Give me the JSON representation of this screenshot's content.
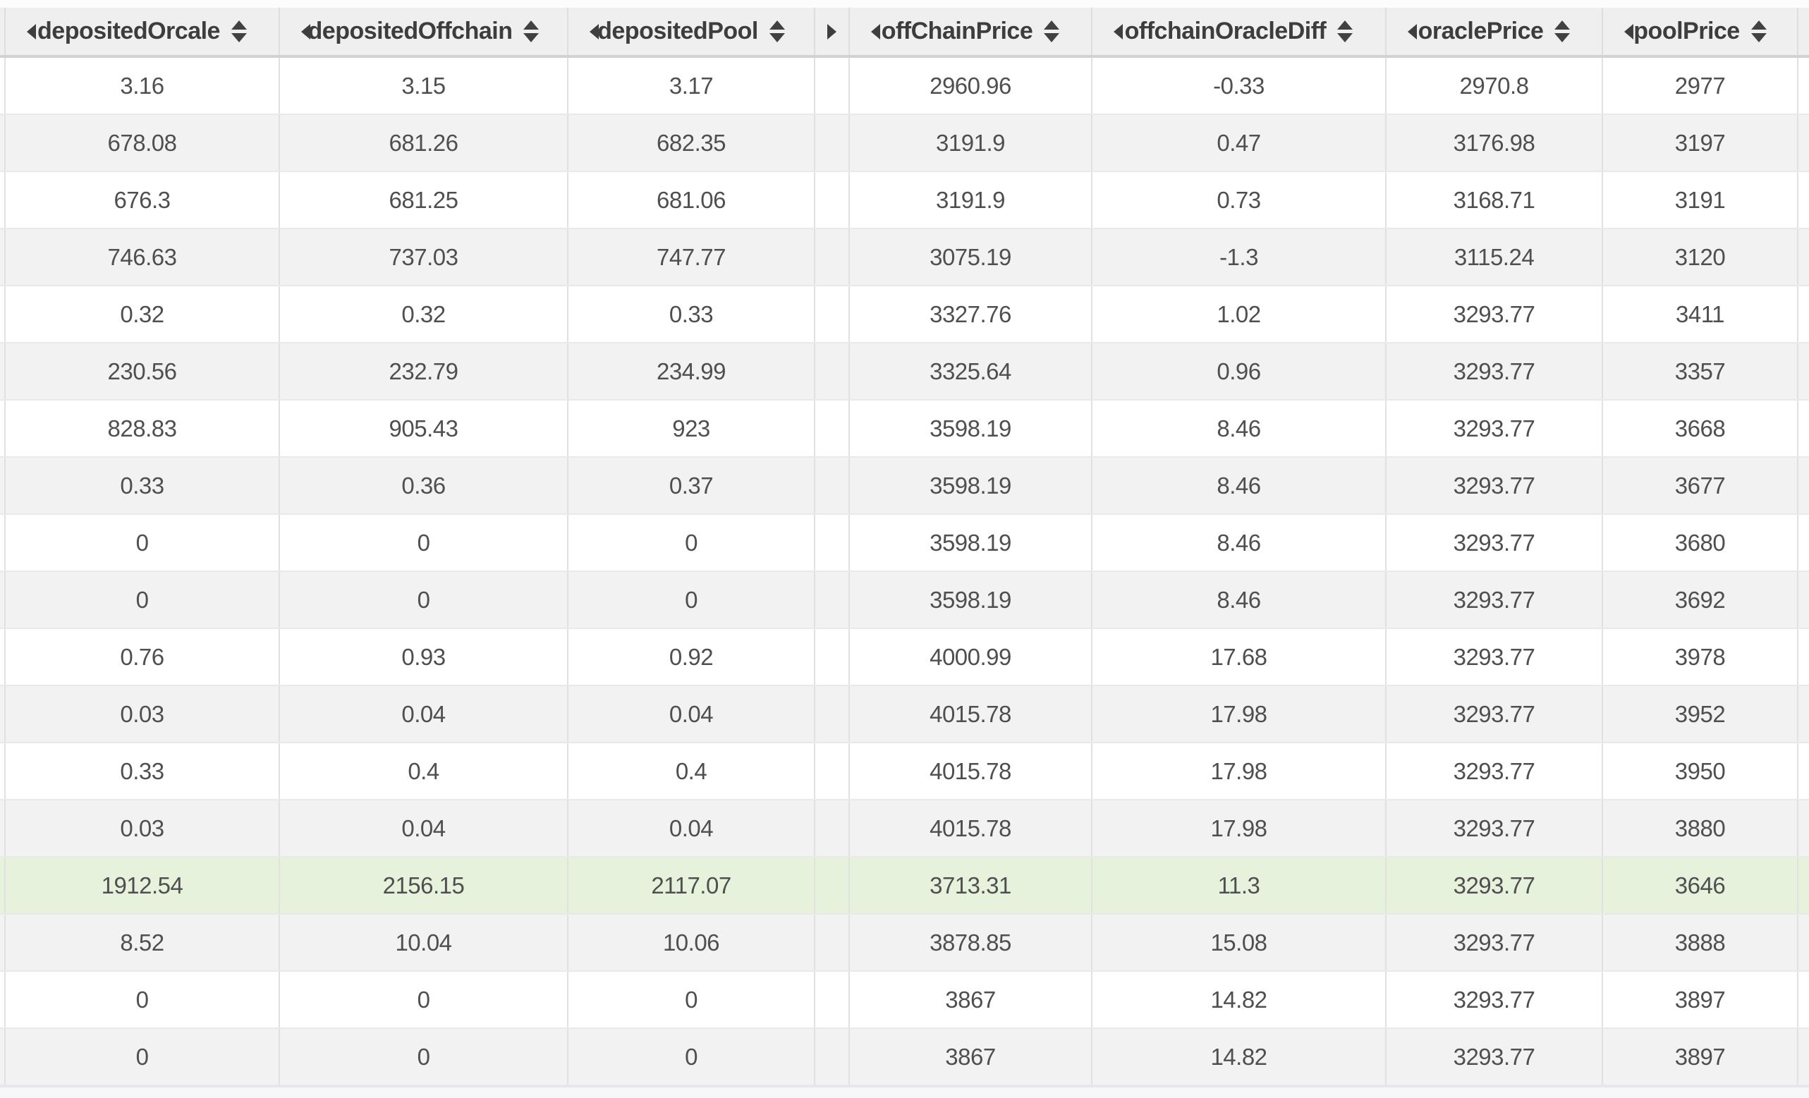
{
  "icons": {
    "collapse_column": "left-triangle",
    "expand_collapsed_column": "right-triangle",
    "sort": "up-down-triangles"
  },
  "colors": {
    "header_bg": "#efefef",
    "header_text": "#3d3d3d",
    "header_border_bottom": "#d2d2d2",
    "row_white_bg": "#ffffff",
    "row_alt_bg": "#f2f2f2",
    "row_highlight_bg": "#e7f2dd",
    "cell_text": "#4f4f4f",
    "vertical_border": "#e1e1e1",
    "row_border": "#e9e9e9",
    "bottom_strip_bg": "#f5f7f9"
  },
  "table": {
    "columns": [
      {
        "key": "depositedOrcale",
        "label": "depositedOrcale"
      },
      {
        "key": "depositedOffchain",
        "label": "depositedOffchain"
      },
      {
        "key": "depositedPool",
        "label": "depositedPool"
      },
      {
        "key": "offChainPrice",
        "label": "offChainPrice"
      },
      {
        "key": "offchainOracleDiff",
        "label": "offchainOracleDiff"
      },
      {
        "key": "oraclePrice",
        "label": "oraclePrice"
      },
      {
        "key": "poolPrice",
        "label": "poolPrice"
      }
    ],
    "collapsed_column_after_index": 2,
    "highlighted_row_index": 14,
    "rows": [
      [
        "3.16",
        "3.15",
        "3.17",
        "2960.96",
        "-0.33",
        "2970.8",
        "2977"
      ],
      [
        "678.08",
        "681.26",
        "682.35",
        "3191.9",
        "0.47",
        "3176.98",
        "3197"
      ],
      [
        "676.3",
        "681.25",
        "681.06",
        "3191.9",
        "0.73",
        "3168.71",
        "3191"
      ],
      [
        "746.63",
        "737.03",
        "747.77",
        "3075.19",
        "-1.3",
        "3115.24",
        "3120"
      ],
      [
        "0.32",
        "0.32",
        "0.33",
        "3327.76",
        "1.02",
        "3293.77",
        "3411"
      ],
      [
        "230.56",
        "232.79",
        "234.99",
        "3325.64",
        "0.96",
        "3293.77",
        "3357"
      ],
      [
        "828.83",
        "905.43",
        "923",
        "3598.19",
        "8.46",
        "3293.77",
        "3668"
      ],
      [
        "0.33",
        "0.36",
        "0.37",
        "3598.19",
        "8.46",
        "3293.77",
        "3677"
      ],
      [
        "0",
        "0",
        "0",
        "3598.19",
        "8.46",
        "3293.77",
        "3680"
      ],
      [
        "0",
        "0",
        "0",
        "3598.19",
        "8.46",
        "3293.77",
        "3692"
      ],
      [
        "0.76",
        "0.93",
        "0.92",
        "4000.99",
        "17.68",
        "3293.77",
        "3978"
      ],
      [
        "0.03",
        "0.04",
        "0.04",
        "4015.78",
        "17.98",
        "3293.77",
        "3952"
      ],
      [
        "0.33",
        "0.4",
        "0.4",
        "4015.78",
        "17.98",
        "3293.77",
        "3950"
      ],
      [
        "0.03",
        "0.04",
        "0.04",
        "4015.78",
        "17.98",
        "3293.77",
        "3880"
      ],
      [
        "1912.54",
        "2156.15",
        "2117.07",
        "3713.31",
        "11.3",
        "3293.77",
        "3646"
      ],
      [
        "8.52",
        "10.04",
        "10.06",
        "3878.85",
        "15.08",
        "3293.77",
        "3888"
      ],
      [
        "0",
        "0",
        "0",
        "3867",
        "14.82",
        "3293.77",
        "3897"
      ],
      [
        "0",
        "0",
        "0",
        "3867",
        "14.82",
        "3293.77",
        "3897"
      ]
    ]
  }
}
